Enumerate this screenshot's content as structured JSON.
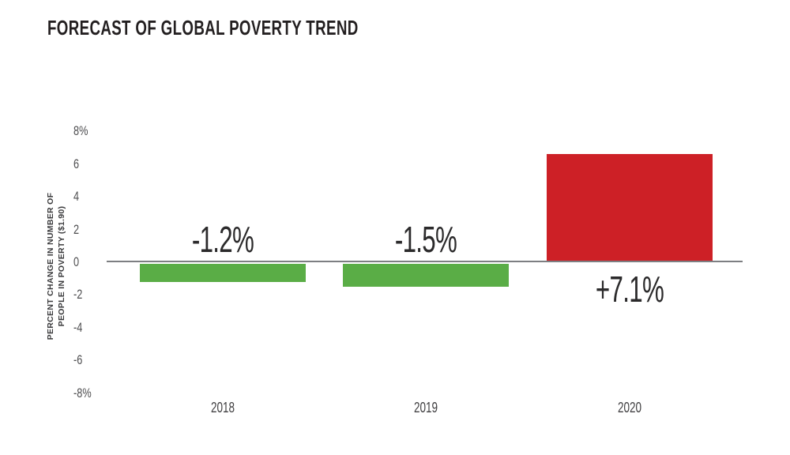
{
  "chart_data": {
    "type": "bar",
    "title": "FORECAST OF GLOBAL POVERTY TREND",
    "categories": [
      "2018",
      "2019",
      "2020"
    ],
    "values": [
      -1.2,
      -1.5,
      7.1
    ],
    "bar_labels": [
      "-1.2%",
      "-1.5%",
      "+7.1%"
    ],
    "ylabel": "PERCENT CHANGE IN NUMBER OF PEOPLE IN POVERTY ($1.90)",
    "ylabel_lines": [
      "PERCENT CHANGE IN NUMBER OF",
      "PEOPLE IN POVERTY ($1.90)"
    ],
    "xlabel": "",
    "ytick_values": [
      8,
      6,
      4,
      2,
      0,
      -2,
      -4,
      -6,
      -8
    ],
    "ytick_labels": [
      "8%",
      "6",
      "4",
      "2",
      "0",
      "-2",
      "-4",
      "-6",
      "-8%"
    ],
    "ylim": [
      -8,
      8
    ],
    "grid": false,
    "legend": false,
    "colors": {
      "negative_bar": "#5aad46",
      "positive_bar": "#cd2026",
      "title_text": "#231f20",
      "axis_text": "#4d4d4f",
      "value_label_text": "#2b2a2b",
      "axis_line": "#7d7f82",
      "background": "#ffffff"
    }
  }
}
